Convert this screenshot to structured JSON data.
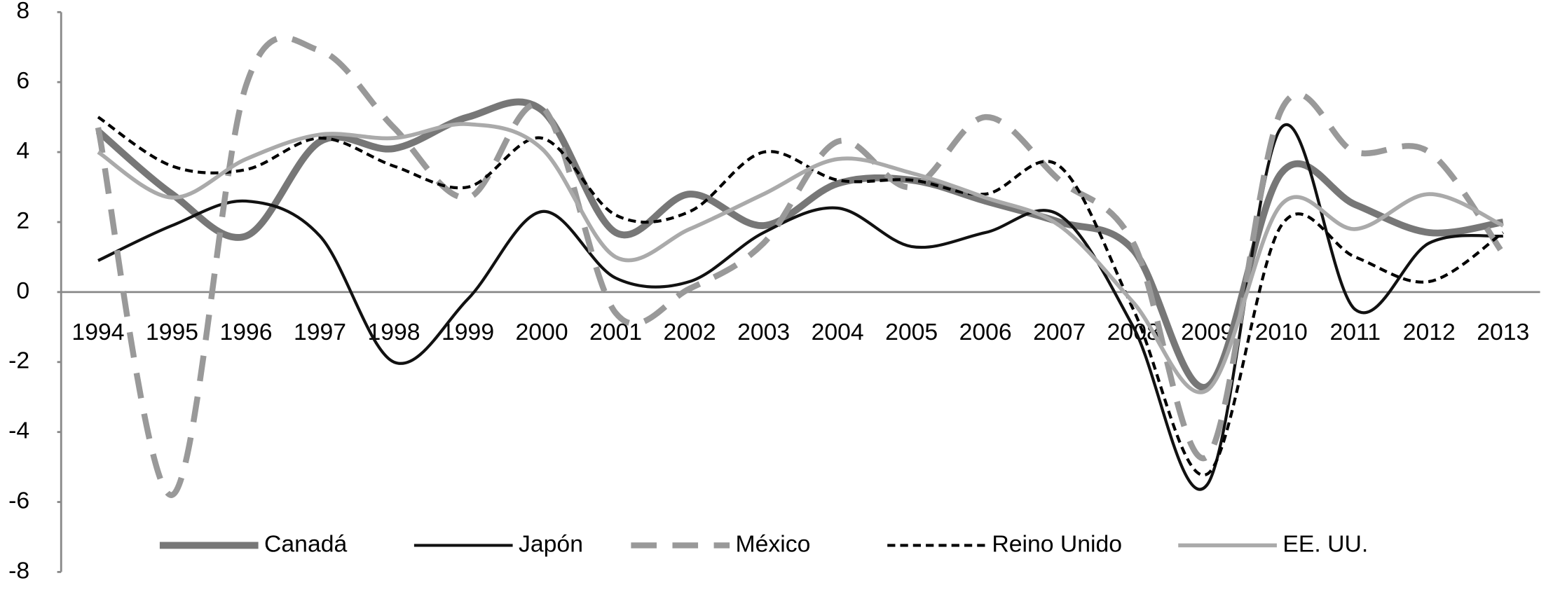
{
  "chart_data": {
    "type": "line",
    "categories": [
      "1994",
      "1995",
      "1996",
      "1997",
      "1998",
      "1999",
      "2000",
      "2001",
      "2002",
      "2003",
      "2004",
      "2005",
      "2006",
      "2007",
      "2008",
      "2009",
      "2010",
      "2011",
      "2012",
      "2013"
    ],
    "series": [
      {
        "name": "Canadá",
        "color": "#777777",
        "values": [
          4.6,
          2.8,
          1.6,
          4.3,
          4.1,
          5.0,
          5.2,
          1.7,
          2.8,
          1.9,
          3.1,
          3.2,
          2.6,
          2.0,
          1.2,
          -2.7,
          3.4,
          2.5,
          1.7,
          2.0
        ]
      },
      {
        "name": "Japón",
        "color": "#111111",
        "values": [
          0.9,
          1.9,
          2.6,
          1.6,
          -2.0,
          -0.2,
          2.3,
          0.4,
          0.3,
          1.7,
          2.4,
          1.3,
          1.7,
          2.2,
          -1.0,
          -5.5,
          4.7,
          -0.5,
          1.4,
          1.6
        ]
      },
      {
        "name": "México",
        "color": "#999999",
        "values": [
          4.7,
          -5.8,
          5.9,
          6.9,
          4.7,
          2.7,
          5.3,
          -0.6,
          0.1,
          1.4,
          4.3,
          3.0,
          5.0,
          3.2,
          1.4,
          -4.7,
          5.2,
          4.0,
          4.0,
          1.1
        ]
      },
      {
        "name": "Reino Unido",
        "color": "#000000",
        "values": [
          5.0,
          3.6,
          3.5,
          4.4,
          3.6,
          3.0,
          4.4,
          2.2,
          2.3,
          4.0,
          3.2,
          3.2,
          2.8,
          3.6,
          -0.5,
          -5.2,
          1.9,
          1.0,
          0.3,
          1.7
        ]
      },
      {
        "name": "EE. UU.",
        "color": "#aaaaaa",
        "values": [
          4.0,
          2.7,
          3.8,
          4.5,
          4.4,
          4.8,
          4.1,
          1.0,
          1.8,
          2.8,
          3.8,
          3.4,
          2.7,
          1.9,
          -0.3,
          -2.8,
          2.5,
          1.8,
          2.8,
          1.9
        ]
      }
    ],
    "ylim": [
      -8,
      8
    ],
    "yticks": [
      -8,
      -6,
      -4,
      -2,
      0,
      2,
      4,
      6,
      8
    ],
    "grid": false,
    "legend": "bottom"
  }
}
